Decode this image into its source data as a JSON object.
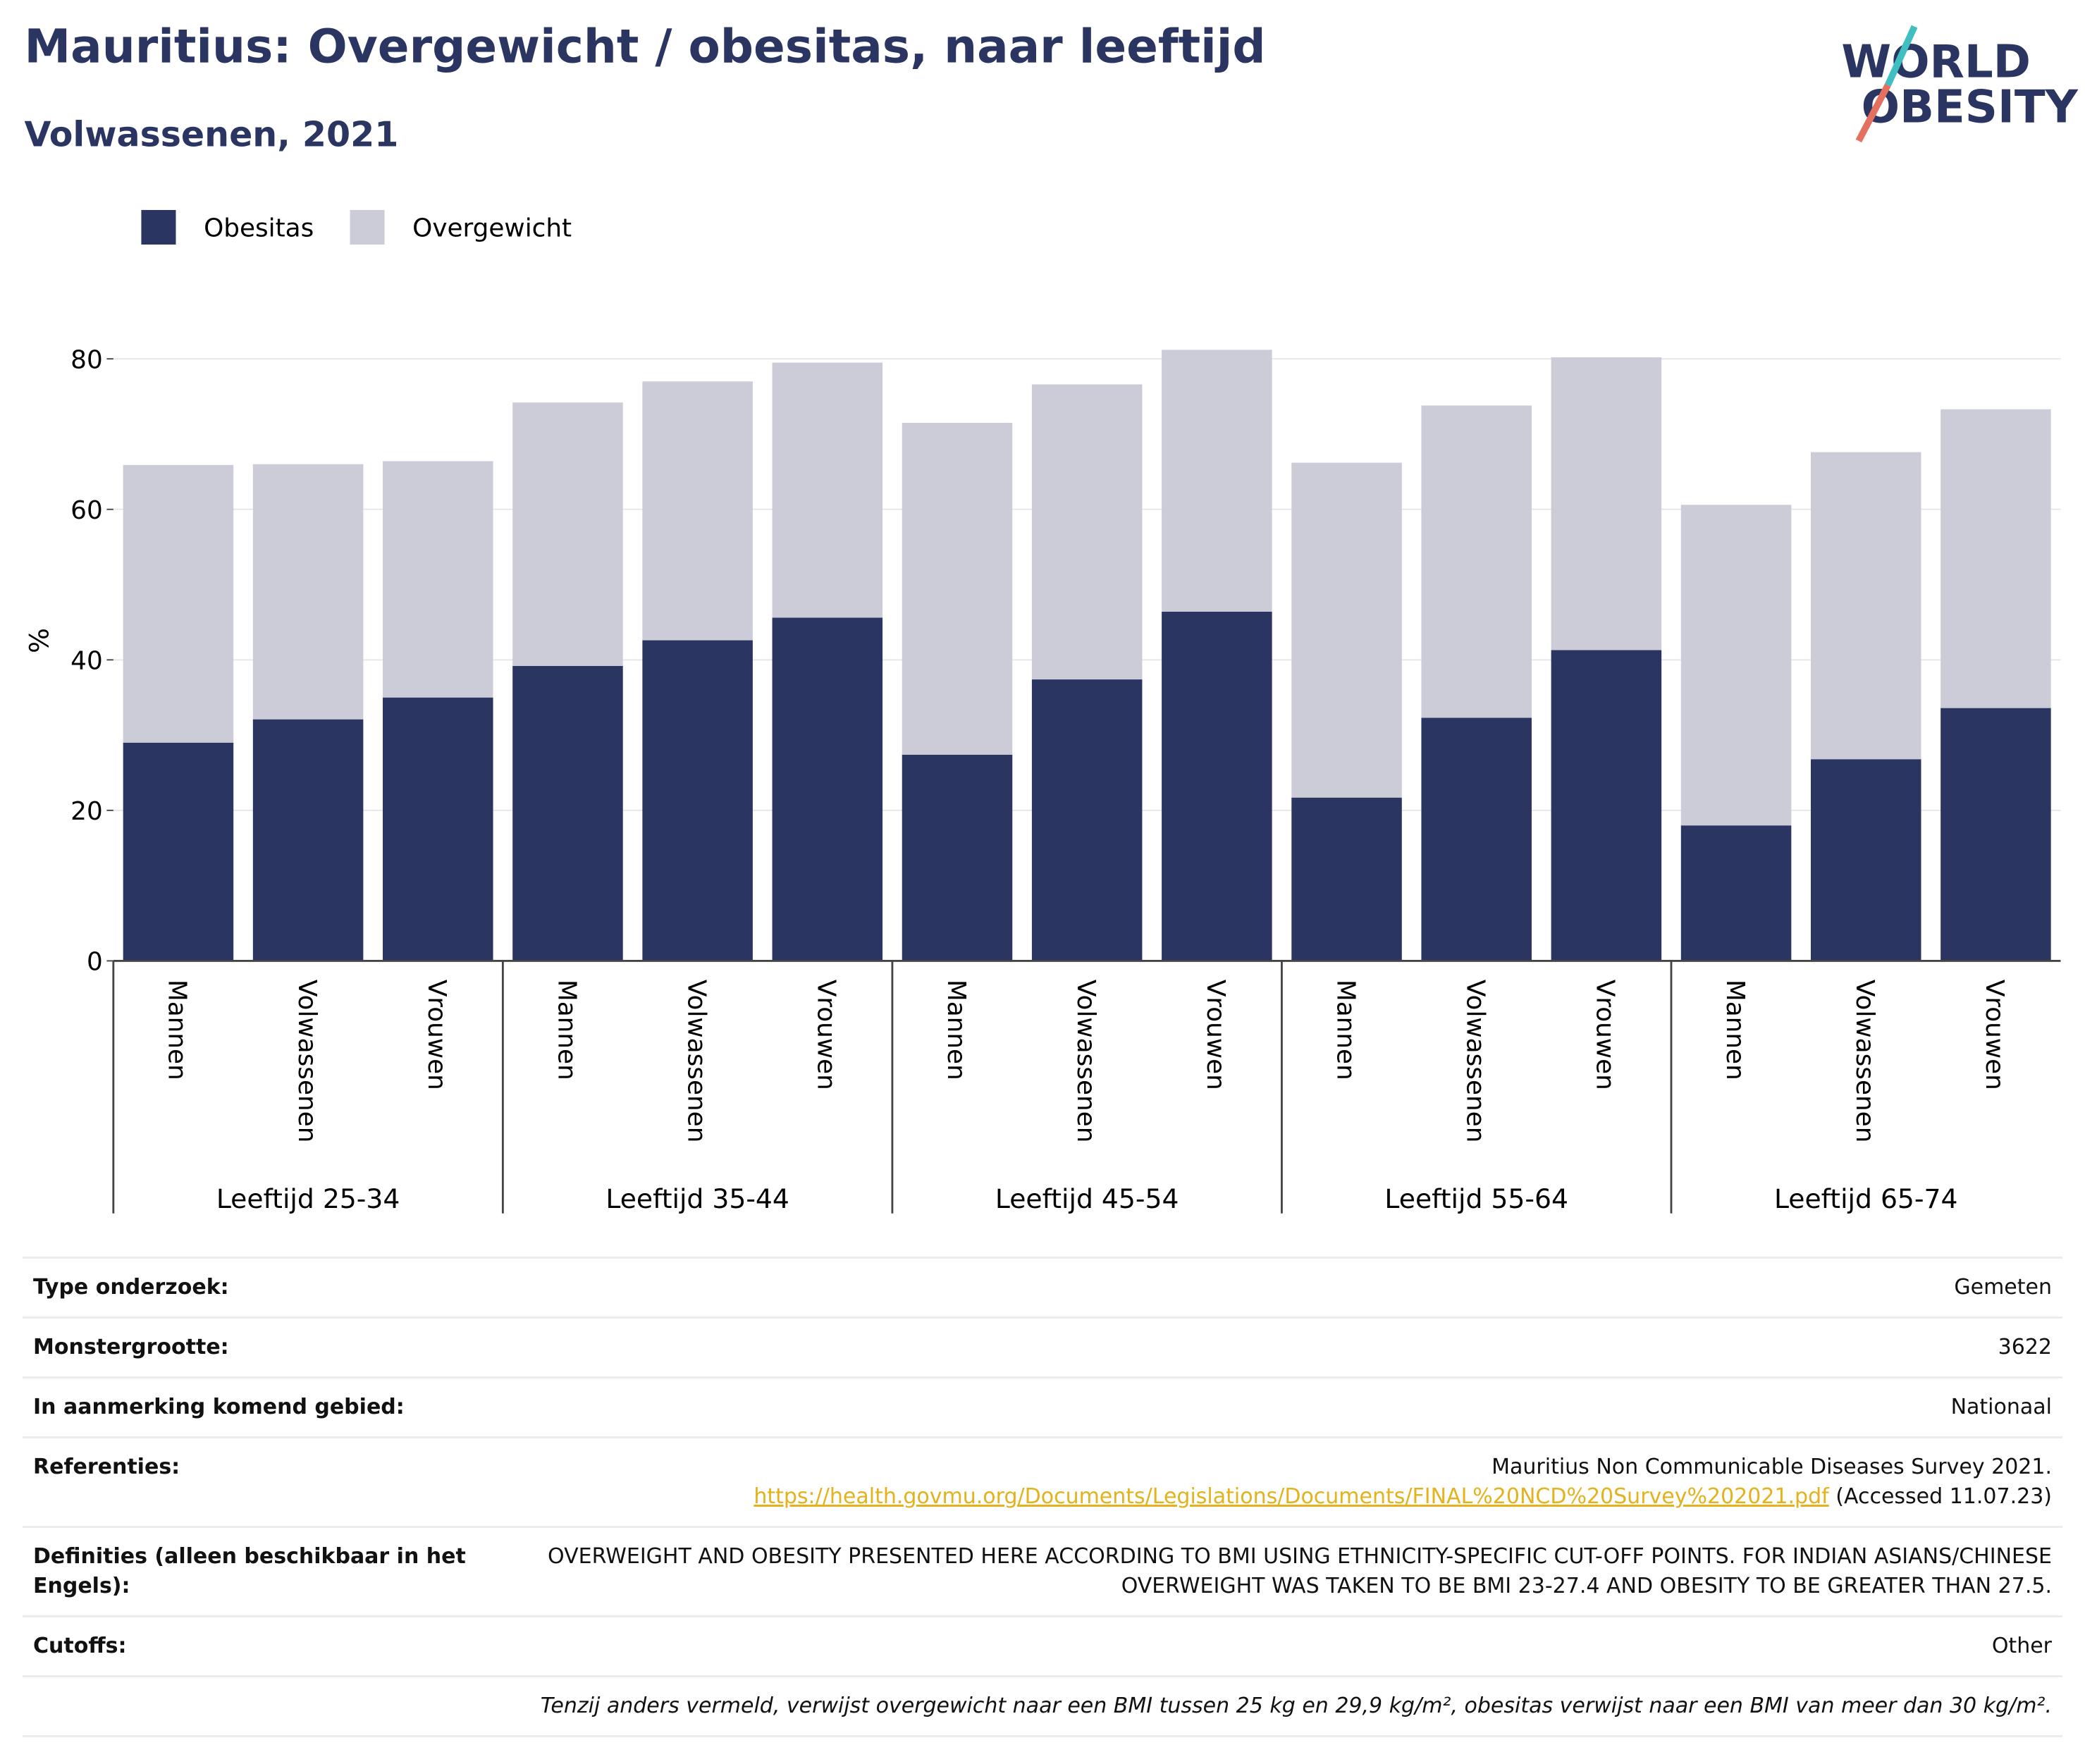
{
  "chart_data": {
    "type": "stacked_bar",
    "title": "Mauritius: Overgewicht / obesitas, naar leeftijd",
    "subtitle": "Volwassenen, 2021",
    "logo": [
      "WORLD",
      "OBESITY"
    ],
    "y_label": "%",
    "groups": [
      "Leeftijd 25-34",
      "Leeftijd 35-44",
      "Leeftijd 45-54",
      "Leeftijd 55-64",
      "Leeftijd 65-74"
    ],
    "categories": [
      "Mannen",
      "Volwassenen",
      "Vrouwen",
      "Mannen",
      "Volwassenen",
      "Vrouwen",
      "Mannen",
      "Volwassenen",
      "Vrouwen",
      "Mannen",
      "Volwassenen",
      "Vrouwen",
      "Mannen",
      "Volwassenen",
      "Vrouwen"
    ],
    "series": [
      {
        "name": "Obesitas",
        "color": "#2b3561",
        "values": [
          29.0,
          32.1,
          35.0,
          39.2,
          42.6,
          45.6,
          27.4,
          37.4,
          46.4,
          21.7,
          32.3,
          41.3,
          18.0,
          26.8,
          33.6
        ]
      },
      {
        "name": "Overgewicht",
        "color": "#cbccd8",
        "values": [
          36.9,
          33.9,
          31.4,
          35.0,
          34.4,
          33.9,
          44.1,
          39.2,
          34.8,
          44.5,
          41.5,
          38.9,
          42.6,
          40.8,
          39.7
        ]
      }
    ],
    "ylim": [
      0,
      85
    ],
    "yticks": [
      0,
      20,
      40,
      60,
      80
    ],
    "grid": true,
    "legend": "top-left"
  },
  "table": {
    "rows": [
      {
        "label": "Type onderzoek:",
        "value": "Gemeten"
      },
      {
        "label": "Monstergrootte:",
        "value": "3622"
      },
      {
        "label": "In aanmerking komend gebied:",
        "value": "Nationaal"
      },
      {
        "label": "Referenties:",
        "value": {
          "text": "Mauritius Non Communicable Diseases Survey 2021.",
          "url": "https://health.govmu.org/Documents/Legislations/Documents/FINAL%20NCD%20Survey%202021.pdf",
          "note": "(Accessed 11.07.23)"
        }
      },
      {
        "label": "Definities (alleen beschikbaar in het Engels):",
        "value": "OVERWEIGHT AND OBESITY PRESENTED HERE ACCORDING TO BMI USING ETHNICITY-SPECIFIC CUT-OFF POINTS. FOR INDIAN ASIANS/CHINESE OVERWEIGHT WAS TAKEN TO BE BMI 23-27.4 AND OBESITY TO BE GREATER THAN 27.5."
      },
      {
        "label": "Cutoffs:",
        "value": "Other"
      }
    ],
    "footnote": "Tenzij anders vermeld, verwijst overgewicht naar een BMI tussen 25 kg en 29,9 kg/m², obesitas verwijst naar een BMI van meer dan 30 kg/m²."
  }
}
